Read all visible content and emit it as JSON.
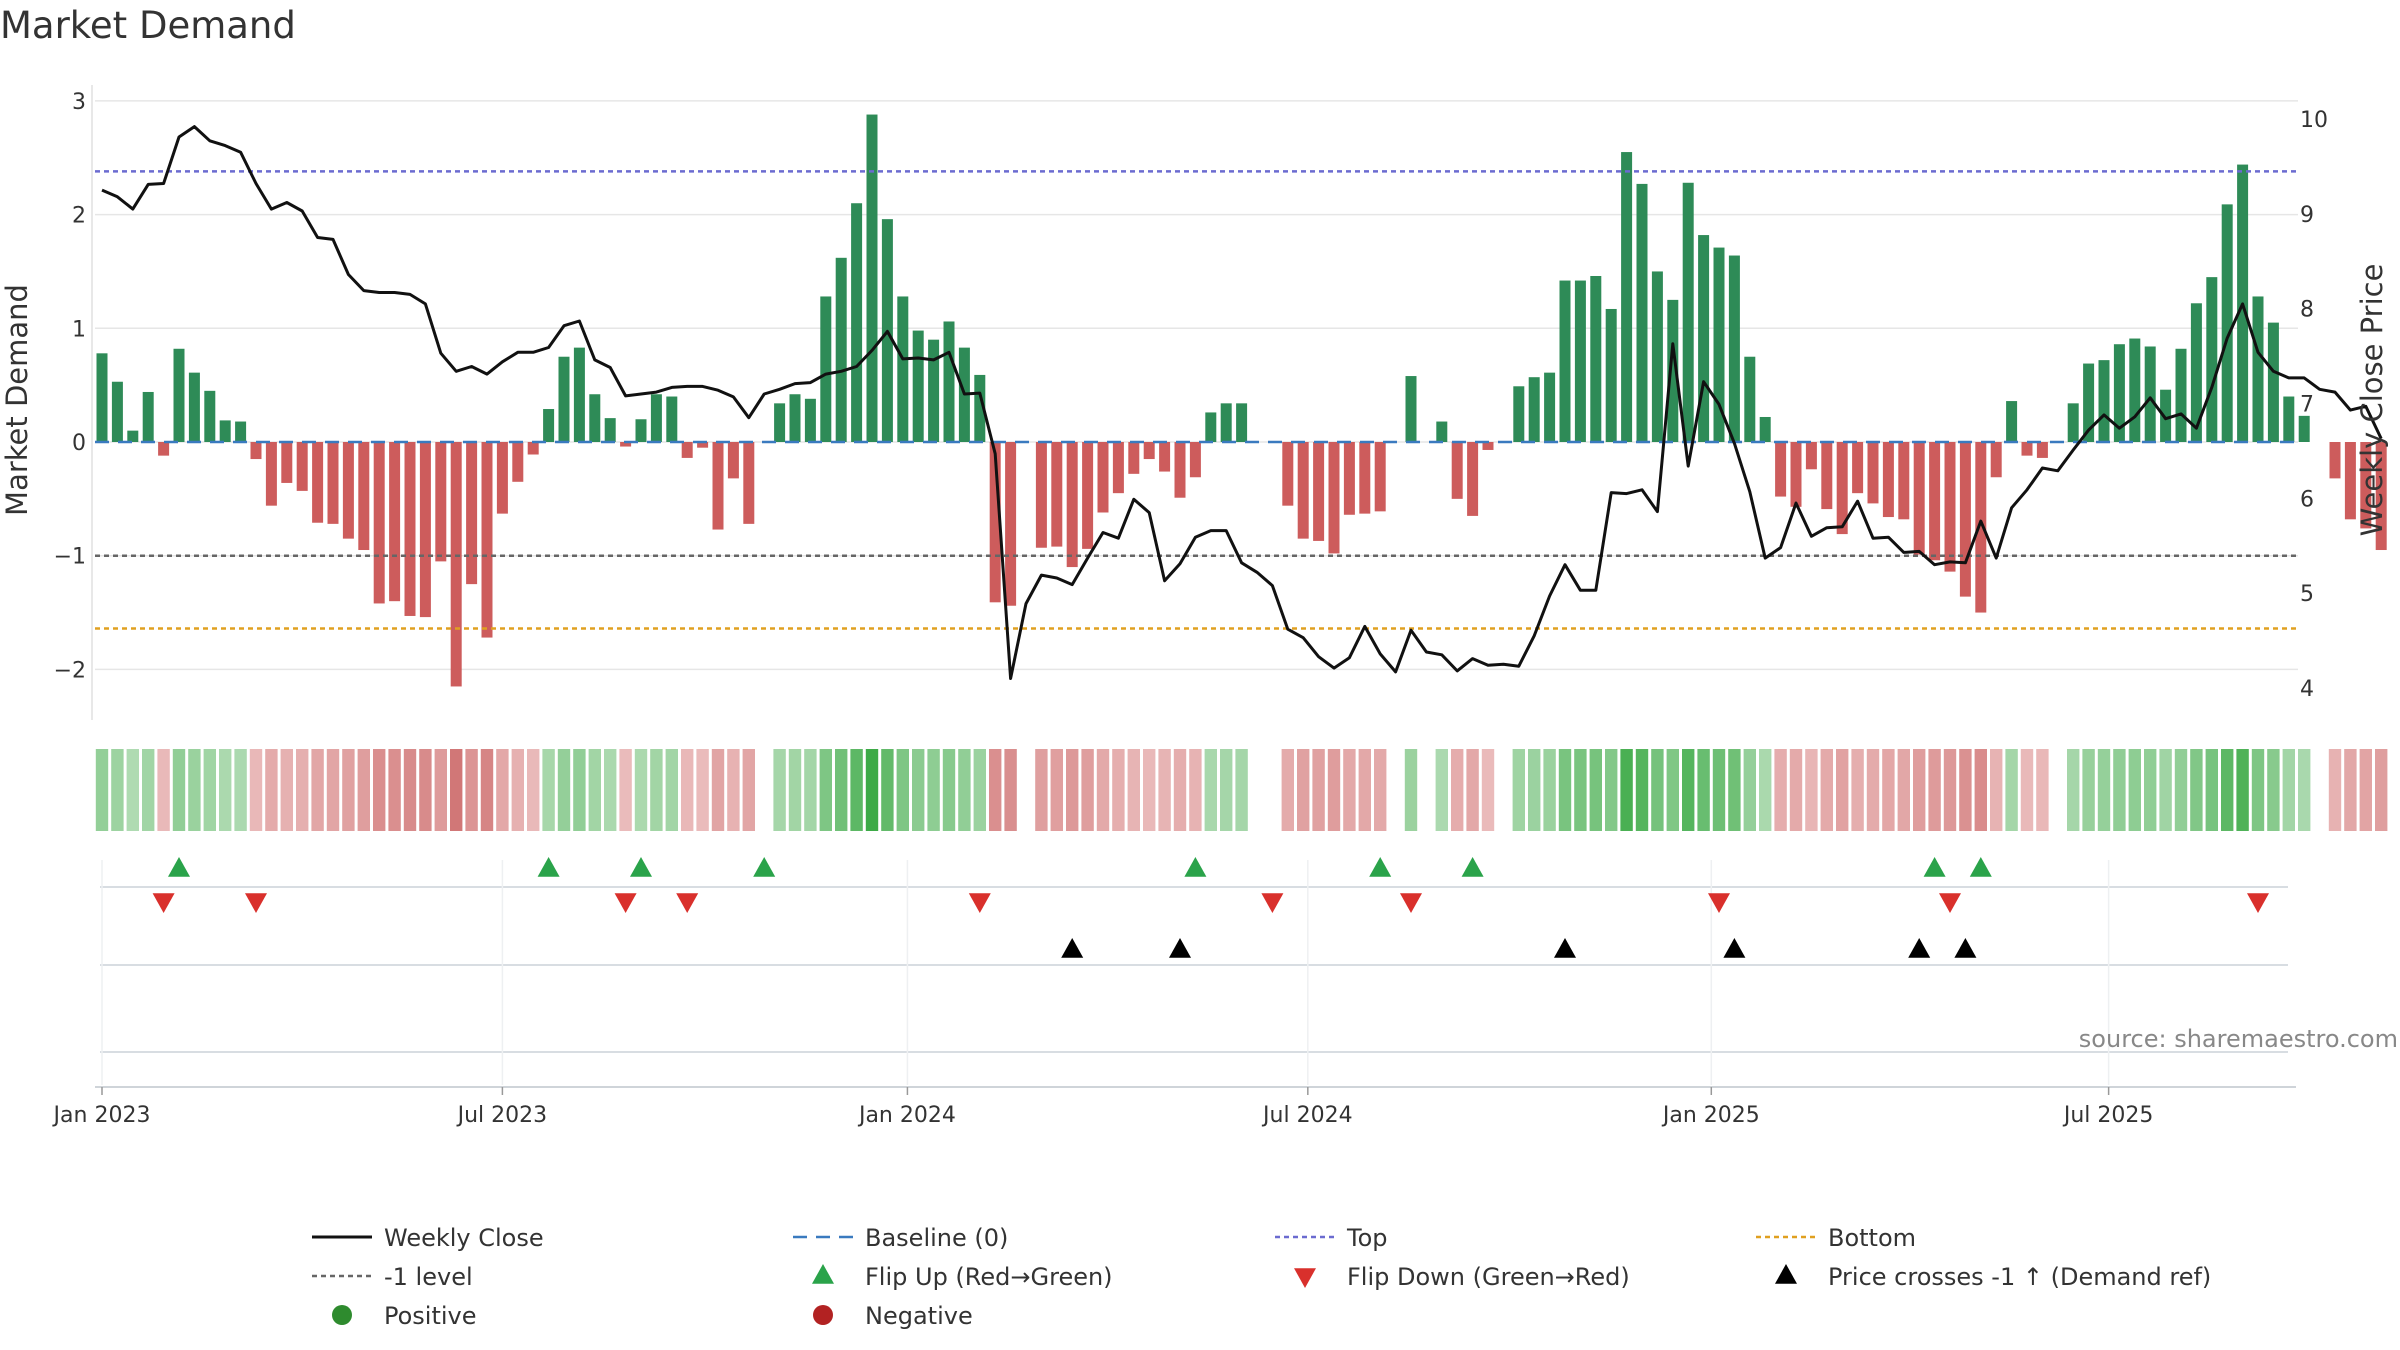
{
  "chart_data": {
    "type": "bar",
    "title": "Market Demand",
    "ylabel": "Market Demand",
    "y2label": "Weekly Close Price",
    "ylim": [
      -2.45,
      3.2
    ],
    "y2lim": [
      3.8,
      10.3
    ],
    "yticks": [
      3,
      2,
      1,
      0,
      -1,
      -2
    ],
    "yticklabels": [
      "3",
      "2",
      "1",
      "0",
      "−1",
      "−2"
    ],
    "y2ticks": [
      10,
      9,
      8,
      7,
      6,
      5,
      4
    ],
    "date_ticks": [
      {
        "label": "Jan 2023",
        "week": 0
      },
      {
        "label": "Jul 2023",
        "week": 26
      },
      {
        "label": "Jan 2024",
        "week": 52.3
      },
      {
        "label": "Jul 2024",
        "week": 78.3
      },
      {
        "label": "Jan 2025",
        "week": 104.5
      },
      {
        "label": "Jul 2025",
        "week": 130.3
      }
    ],
    "reference_lines": [
      {
        "name": "Top",
        "value": 2.38,
        "color": "#6b6bd0"
      },
      {
        "name": "-1 level",
        "value": -1.0,
        "color": "#666666"
      },
      {
        "name": "Bottom",
        "value": -1.64,
        "color": "#e0a020"
      }
    ],
    "series": [
      {
        "name": "Market Demand",
        "values": [
          0.78,
          0.53,
          0.1,
          0.44,
          -0.12,
          0.82,
          0.61,
          0.45,
          0.19,
          0.18,
          -0.15,
          -0.56,
          -0.36,
          -0.43,
          -0.71,
          -0.72,
          -0.85,
          -0.95,
          -1.42,
          -1.4,
          -1.53,
          -1.54,
          -1.05,
          -2.15,
          -1.25,
          -1.72,
          -0.63,
          -0.35,
          -0.11,
          0.29,
          0.75,
          0.83,
          0.42,
          0.21,
          -0.04,
          0.2,
          0.42,
          0.4,
          -0.14,
          -0.05,
          -0.77,
          -0.32,
          -0.72,
          0.0,
          0.34,
          0.42,
          0.38,
          1.28,
          1.62,
          2.1,
          2.88,
          1.96,
          1.28,
          0.98,
          0.9,
          1.06,
          0.83,
          0.59,
          -1.41,
          -1.44,
          0.0,
          -0.93,
          -0.92,
          -1.1,
          -0.94,
          -0.62,
          -0.45,
          -0.28,
          -0.15,
          -0.26,
          -0.49,
          -0.31,
          0.26,
          0.34,
          0.34,
          0.0,
          0.0,
          -0.56,
          -0.85,
          -0.87,
          -0.98,
          -0.64,
          -0.63,
          -0.61,
          0.0,
          0.58,
          0.0,
          0.18,
          -0.5,
          -0.65,
          -0.07,
          0.0,
          0.49,
          0.57,
          0.61,
          1.42,
          1.42,
          1.46,
          1.17,
          2.55,
          2.27,
          1.5,
          1.25,
          2.28,
          1.82,
          1.71,
          1.64,
          0.75,
          0.22,
          -0.48,
          -0.57,
          -0.24,
          -0.59,
          -0.81,
          -0.45,
          -0.54,
          -0.66,
          -0.68,
          -0.99,
          -1.04,
          -1.14,
          -1.36,
          -1.5,
          -0.31,
          0.36,
          -0.12,
          -0.14,
          0.0,
          0.34,
          0.69,
          0.72,
          0.86,
          0.91,
          0.84,
          0.46,
          0.82,
          1.22,
          1.45,
          2.09,
          2.44,
          1.28,
          1.05,
          0.4,
          0.23,
          0.0,
          -0.32,
          -0.68,
          -0.76,
          -0.95
        ]
      },
      {
        "name": "Weekly Close",
        "values": [
          9.25,
          9.18,
          9.05,
          9.31,
          9.32,
          9.81,
          9.92,
          9.77,
          9.72,
          9.65,
          9.32,
          9.05,
          9.12,
          9.03,
          8.75,
          8.73,
          8.36,
          8.19,
          8.17,
          8.17,
          8.15,
          8.05,
          7.53,
          7.34,
          7.39,
          7.31,
          7.44,
          7.54,
          7.54,
          7.59,
          7.82,
          7.87,
          7.46,
          7.38,
          7.08,
          7.1,
          7.12,
          7.17,
          7.18,
          7.18,
          7.14,
          7.07,
          6.85,
          7.1,
          7.15,
          7.21,
          7.22,
          7.31,
          7.34,
          7.39,
          7.56,
          7.76,
          7.47,
          7.48,
          7.46,
          7.54,
          7.1,
          7.11,
          6.47,
          4.1,
          4.89,
          5.19,
          5.16,
          5.09,
          5.37,
          5.64,
          5.58,
          5.99,
          5.85,
          5.13,
          5.31,
          5.59,
          5.66,
          5.66,
          5.32,
          5.22,
          5.08,
          4.62,
          4.53,
          4.33,
          4.21,
          4.32,
          4.65,
          4.36,
          4.17,
          4.61,
          4.38,
          4.35,
          4.18,
          4.31,
          4.24,
          4.25,
          4.23,
          4.55,
          4.97,
          5.3,
          5.03,
          5.03,
          6.06,
          6.05,
          6.09,
          5.86,
          7.63,
          6.34,
          7.23,
          6.99,
          6.58,
          6.07,
          5.37,
          5.48,
          5.95,
          5.6,
          5.69,
          5.7,
          5.97,
          5.58,
          5.59,
          5.43,
          5.44,
          5.3,
          5.33,
          5.32,
          5.76,
          5.37,
          5.9,
          6.09,
          6.32,
          6.29,
          6.51,
          6.72,
          6.88,
          6.74,
          6.86,
          7.06,
          6.84,
          6.89,
          6.74,
          7.17,
          7.69,
          8.05,
          7.54,
          7.34,
          7.27,
          7.27,
          7.15,
          7.12,
          6.93,
          6.97,
          6.63
        ]
      }
    ],
    "flip_up_weeks": [
      5,
      29,
      35,
      43,
      71,
      83,
      89,
      119,
      122
    ],
    "flip_down_weeks": [
      4,
      10,
      34,
      38,
      57,
      76,
      85,
      105,
      120,
      140
    ],
    "price_cross_weeks": [
      63,
      70,
      95,
      106,
      118,
      121
    ],
    "source_text": "source: sharemaestro.com",
    "legend": [
      {
        "label": "Weekly Close",
        "style": "solid",
        "color": "#111111"
      },
      {
        "label": "Baseline (0)",
        "style": "dash",
        "color": "#3a7abf"
      },
      {
        "label": "Top",
        "style": "dot",
        "color": "#6b6bd0"
      },
      {
        "label": "Bottom",
        "style": "dot",
        "color": "#e0a020"
      },
      {
        "label": "-1 level",
        "style": "dot",
        "color": "#666666"
      },
      {
        "label": "Flip Up (Red→Green)",
        "style": "triangle-up",
        "color": "#2aa34a"
      },
      {
        "label": "Flip Down (Green→Red)",
        "style": "triangle-down",
        "color": "#d9302c"
      },
      {
        "label": "Price crosses -1 ↑ (Demand ref)",
        "style": "triangle-up",
        "color": "#000000"
      },
      {
        "label": "Positive",
        "style": "circle",
        "color": "#2e8b2e"
      },
      {
        "label": "Negative",
        "style": "circle",
        "color": "#b22222"
      }
    ]
  },
  "colors": {
    "positive_bar": "#2e8b57",
    "negative_bar": "#cd5c5c",
    "grid": "#e6e6e6"
  }
}
